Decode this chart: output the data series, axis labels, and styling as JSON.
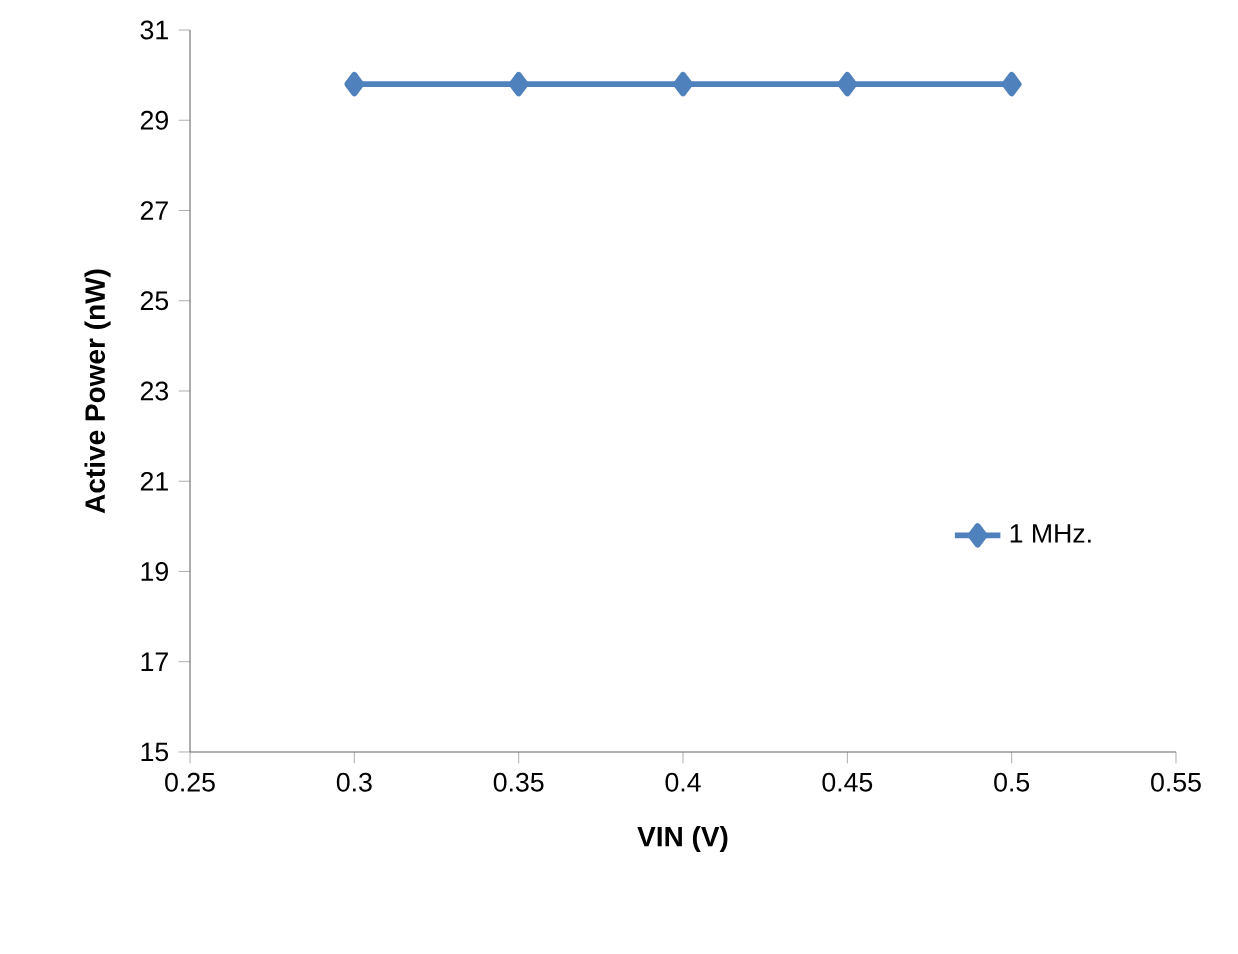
{
  "chart_data": {
    "type": "line",
    "xlabel": "VIN (V)",
    "ylabel": "Active Power (nW)",
    "x": [
      0.3,
      0.35,
      0.4,
      0.45,
      0.5
    ],
    "series": [
      {
        "name": "1 MHz.",
        "color": "#4f81bd",
        "values": [
          29.8,
          29.8,
          29.8,
          29.8,
          29.8
        ]
      }
    ],
    "xlim": [
      0.25,
      0.55
    ],
    "xticks": [
      0.25,
      0.3,
      0.35,
      0.4,
      0.45,
      0.5,
      0.55
    ],
    "ylim": [
      15,
      31
    ],
    "yticks": [
      15,
      17,
      19,
      21,
      23,
      25,
      27,
      29,
      31
    ],
    "grid": false,
    "legend": "right",
    "marker": "diamond",
    "line_style": "solid"
  }
}
